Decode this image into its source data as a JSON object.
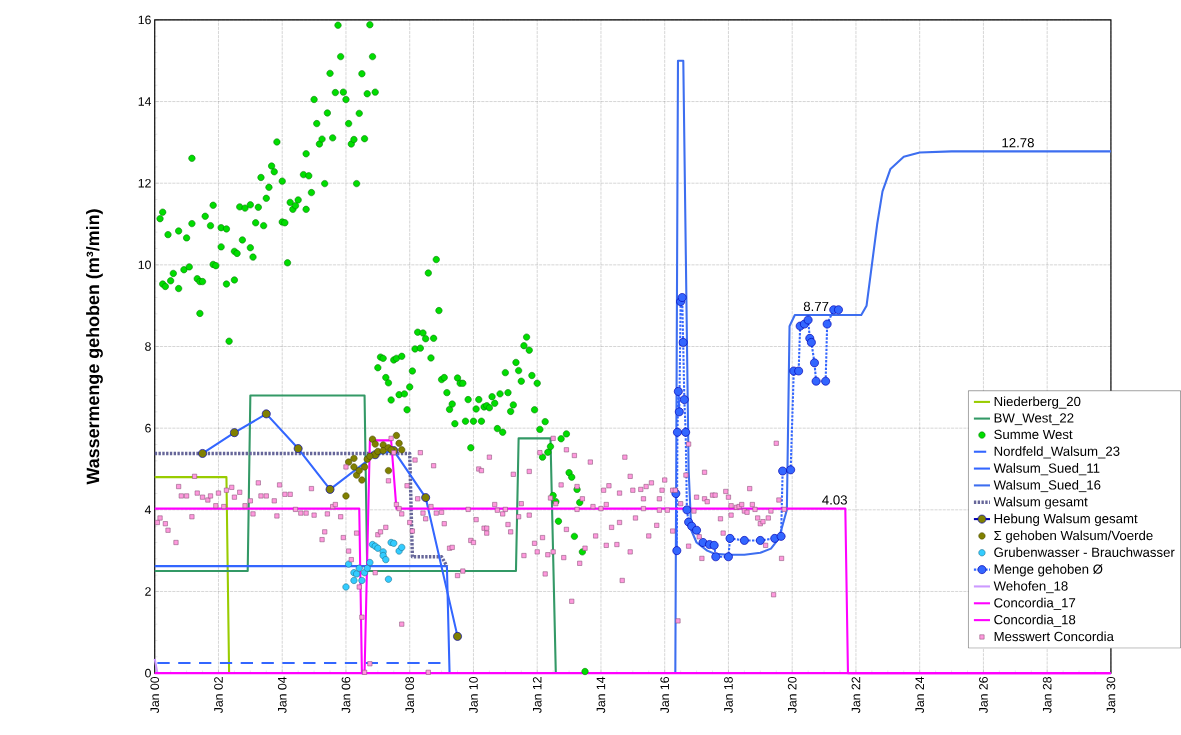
{
  "chart_data": {
    "type": "line",
    "ylabel": "Wassermenge gehoben (m³/min)",
    "xlim": [
      "2000-01",
      "2030-01"
    ],
    "ylim": [
      0,
      16
    ],
    "xticks": [
      {
        "value": "2000-01",
        "label": "Jan 00"
      },
      {
        "value": "2002-01",
        "label": "Jan 02"
      },
      {
        "value": "2004-01",
        "label": "Jan 04"
      },
      {
        "value": "2006-01",
        "label": "Jan 06"
      },
      {
        "value": "2008-01",
        "label": "Jan 08"
      },
      {
        "value": "2010-01",
        "label": "Jan 10"
      },
      {
        "value": "2012-01",
        "label": "Jan 12"
      },
      {
        "value": "2014-01",
        "label": "Jan 14"
      },
      {
        "value": "2016-01",
        "label": "Jan 16"
      },
      {
        "value": "2018-01",
        "label": "Jan 18"
      },
      {
        "value": "2020-01",
        "label": "Jan 20"
      },
      {
        "value": "2022-01",
        "label": "Jan 22"
      },
      {
        "value": "2024-01",
        "label": "Jan 24"
      },
      {
        "value": "2026-01",
        "label": "Jan 26"
      },
      {
        "value": "2028-01",
        "label": "Jan 28"
      },
      {
        "value": "2030-01",
        "label": "Jan 30"
      }
    ],
    "yticks": [
      0,
      2,
      4,
      6,
      8,
      10,
      12,
      14,
      16
    ],
    "grid": true,
    "legend": "bottom right",
    "annotations": [
      {
        "text": "8.77",
        "x": "2020-10",
        "y": 8.77
      },
      {
        "text": "12.78",
        "x": "2027-02",
        "y": 12.78
      },
      {
        "text": "4.03",
        "x": "2021-05",
        "y": 4.03
      }
    ],
    "series": [
      {
        "name": "Niederberg_20",
        "type": "line",
        "color": "#99cc00",
        "marker": "none",
        "line_style": "solid",
        "x": [
          "2000-01",
          "2002-04",
          "2002-05"
        ],
        "values": [
          4.8,
          4.8,
          0
        ]
      },
      {
        "name": "BW_West_22",
        "type": "line",
        "color": "#339966",
        "marker": "none",
        "line_style": "solid",
        "x": [
          "2000-01",
          "2002-12",
          "2003-01",
          "2006-08",
          "2006-09",
          "2011-05",
          "2011-06",
          "2012-06",
          "2012-08"
        ],
        "values": [
          2.5,
          2.5,
          6.8,
          6.8,
          2.5,
          2.5,
          5.75,
          5.75,
          0
        ]
      },
      {
        "name": "Summe West",
        "type": "scatter",
        "color": "#00dd00",
        "marker": "circle",
        "x": [
          "2000-03",
          "2000-04",
          "2000-06",
          "2000-04",
          "2000-05",
          "2000-07",
          "2000-08",
          "2000-10",
          "2000-10",
          "2000-12",
          "2001-01",
          "2001-02",
          "2001-03",
          "2001-03",
          "2001-05",
          "2001-06",
          "2001-06",
          "2001-07",
          "2001-08",
          "2001-10",
          "2001-11",
          "2001-11",
          "2001-12",
          "2002-02",
          "2002-02",
          "2002-04",
          "2002-04",
          "2002-05",
          "2002-07",
          "2002-07",
          "2002-08",
          "2002-09",
          "2002-10",
          "2002-11",
          "2003-01",
          "2003-01",
          "2003-02",
          "2003-03",
          "2003-04",
          "2003-05",
          "2003-06",
          "2003-07",
          "2003-08",
          "2003-09",
          "2003-10",
          "2003-11",
          "2004-01",
          "2004-01",
          "2004-02",
          "2004-03",
          "2004-04",
          "2004-05",
          "2004-06",
          "2004-07",
          "2004-09",
          "2004-10",
          "2004-10",
          "2004-11",
          "2004-12",
          "2005-01",
          "2005-02",
          "2005-03",
          "2005-04",
          "2005-05",
          "2005-06",
          "2005-07",
          "2005-08",
          "2005-09",
          "2005-10",
          "2005-11",
          "2005-12",
          "2006-01",
          "2006-02",
          "2006-03",
          "2006-04",
          "2006-05",
          "2006-06",
          "2006-07",
          "2006-08",
          "2006-09",
          "2006-10",
          "2006-11",
          "2006-12",
          "2007-01",
          "2007-02",
          "2007-03",
          "2007-04",
          "2007-05",
          "2007-06",
          "2007-07",
          "2007-08",
          "2007-09",
          "2007-10",
          "2007-11",
          "2007-12",
          "2008-01",
          "2008-02",
          "2008-03",
          "2008-04",
          "2008-05",
          "2008-06",
          "2008-07",
          "2008-08",
          "2008-09",
          "2008-10",
          "2008-11",
          "2008-12",
          "2009-01",
          "2009-02",
          "2009-03",
          "2009-04",
          "2009-05",
          "2009-06",
          "2009-07",
          "2009-08",
          "2009-09",
          "2009-10",
          "2009-11",
          "2009-12",
          "2010-01",
          "2010-02",
          "2010-03",
          "2010-04",
          "2010-05",
          "2010-06",
          "2010-07",
          "2010-08",
          "2010-09",
          "2010-10",
          "2010-11",
          "2010-12",
          "2011-01",
          "2011-02",
          "2011-03",
          "2011-04",
          "2011-05",
          "2011-06",
          "2011-07",
          "2011-08",
          "2011-09",
          "2011-10",
          "2011-11",
          "2011-12",
          "2012-01",
          "2012-02",
          "2012-03",
          "2012-04",
          "2012-05",
          "2012-06",
          "2012-07",
          "2012-08",
          "2012-09",
          "2012-10",
          "2012-12",
          "2013-01",
          "2013-02",
          "2013-03",
          "2013-04",
          "2013-05",
          "2013-06",
          "2013-07"
        ],
        "values": [
          11.13,
          11.29,
          10.74,
          9.53,
          9.47,
          9.61,
          9.79,
          9.42,
          10.83,
          9.88,
          10.66,
          9.95,
          11.01,
          12.61,
          9.66,
          8.81,
          9.59,
          9.59,
          11.19,
          10.96,
          11.46,
          10.01,
          9.98,
          10.44,
          10.91,
          10.88,
          9.53,
          8.13,
          9.63,
          10.33,
          10.28,
          11.42,
          10.61,
          11.39,
          11.47,
          10.42,
          10.19,
          11.03,
          11.41,
          12.14,
          10.96,
          11.63,
          11.9,
          12.42,
          12.28,
          13.01,
          11.05,
          12.05,
          11.03,
          10.05,
          11.53,
          11.36,
          11.45,
          11.59,
          12.21,
          11.36,
          12.72,
          12.18,
          11.77,
          14.05,
          13.46,
          12.96,
          13.08,
          11.99,
          13.72,
          14.69,
          13.11,
          14.22,
          15.87,
          15.1,
          14.23,
          14.05,
          13.46,
          12.96,
          13.07,
          11.99,
          13.71,
          14.68,
          13.09,
          14.19,
          15.88,
          15.1,
          14.23,
          7.48,
          7.74,
          7.71,
          7.24,
          7.11,
          6.69,
          7.67,
          7.71,
          6.82,
          7.76,
          6.84,
          6.45,
          7.01,
          7.4,
          7.94,
          8.35,
          7.96,
          8.33,
          8.19,
          9.8,
          7.72,
          8.2,
          10.13,
          8.88,
          7.19,
          7.24,
          6.87,
          6.46,
          6.59,
          6.11,
          7.23,
          7.1,
          7.1,
          6.17,
          6.7,
          5.52,
          6.17,
          6.47,
          6.7,
          6.17,
          6.52,
          6.55,
          6.5,
          6.77,
          6.61,
          5.99,
          6.84,
          5.9,
          7.36,
          6.87,
          6.41,
          6.57,
          7.61,
          7.41,
          7.15,
          8.02,
          8.23,
          7.91,
          7.29,
          6.45,
          7.1,
          5.97,
          5.29,
          6.16,
          5.41,
          5.55,
          4.35,
          4.2,
          3.72,
          5.74,
          5.86,
          4.91,
          4.8,
          3.35,
          4.5,
          4.18,
          2.97,
          0.04
        ]
      },
      {
        "name": "Nordfeld_Walsum_23",
        "type": "line",
        "color": "#3366ff",
        "marker": "none",
        "line_style": "dashed",
        "x": [
          "2000-02",
          "2009-01"
        ],
        "values": [
          0.25,
          0.25
        ]
      },
      {
        "name": "Walsum_Sued_11",
        "type": "line",
        "color": "#3366ff",
        "marker": "none",
        "line_style": "solid",
        "x": [
          "2000-01",
          "2009-03",
          "2009-04"
        ],
        "values": [
          2.62,
          2.62,
          0
        ]
      },
      {
        "name": "Walsum_Sued_16",
        "type": "line",
        "color": "#3d6ef0",
        "marker": "none",
        "line_style": "solid",
        "x": [
          "2016-05",
          "2016-06",
          "2016-08",
          "2016-10",
          "2016-11",
          "2017-01",
          "2017-05",
          "2017-08",
          "2018-01",
          "2018-07",
          "2019-01",
          "2019-05",
          "2019-08",
          "2019-11",
          "2019-12",
          "2020-02",
          "2022-03",
          "2022-05",
          "2022-07",
          "2022-09",
          "2022-11",
          "2023-02",
          "2023-07",
          "2024-01",
          "2025-01",
          "2030-01"
        ],
        "values": [
          0,
          15,
          15,
          5,
          3.5,
          3.2,
          3.0,
          2.92,
          2.9,
          2.9,
          2.95,
          3.05,
          3.3,
          4.0,
          8.5,
          8.77,
          8.77,
          9.0,
          10.0,
          11.0,
          11.8,
          12.35,
          12.65,
          12.75,
          12.78,
          12.78
        ]
      },
      {
        "name": "Walsum gesamt",
        "type": "line",
        "color": "#666699",
        "marker": "none",
        "line_style": "dotted",
        "x": [
          "2000-01",
          "2008-01",
          "2008-02",
          "2009-01",
          "2009-03"
        ],
        "values": [
          5.38,
          5.38,
          2.85,
          2.85,
          2.62
        ]
      },
      {
        "name": "Hebung Walsum gesamt",
        "type": "line",
        "color": "#3366ff",
        "marker": "circle",
        "line_style": "solid",
        "colors": [
          "#808000",
          "#808000",
          "#808000",
          "#808000",
          "#808000",
          "#808000",
          "#808000",
          "#808000",
          "#808000"
        ],
        "x": [
          "2001-07",
          "2002-07",
          "2003-07",
          "2004-07",
          "2005-07",
          "2006-12",
          "2007-07",
          "2008-07",
          "2009-07"
        ],
        "values": [
          5.38,
          5.89,
          6.35,
          5.5,
          4.5,
          5.35,
          5.45,
          4.3,
          0.9
        ]
      },
      {
        "name": "Σ gehoben Walsum/Voerde",
        "type": "scatter",
        "color": "#808000",
        "marker": "circle",
        "x": [
          "2006-01",
          "2006-02",
          "2006-04",
          "2006-04",
          "2006-05",
          "2006-06",
          "2006-07",
          "2006-08",
          "2006-09",
          "2006-10",
          "2006-11",
          "2006-12",
          "2007-01",
          "2007-03",
          "2007-03",
          "2007-05",
          "2007-05",
          "2007-06",
          "2007-08",
          "2007-09",
          "2007-10"
        ],
        "values": [
          4.34,
          5.17,
          5.05,
          5.26,
          4.85,
          4.96,
          4.73,
          5.05,
          5.24,
          5.31,
          5.73,
          5.61,
          5.43,
          5.59,
          5.45,
          5.52,
          4.96,
          5.47,
          5.82,
          5.63,
          5.47
        ]
      },
      {
        "name": "Grubenwasser - Brauchwasser",
        "type": "scatter",
        "color": "#33ccff",
        "marker": "circle",
        "x": [
          "2006-01",
          "2006-02",
          "2006-04",
          "2006-04",
          "2006-05",
          "2006-06",
          "2006-07",
          "2006-08",
          "2006-09",
          "2006-10",
          "2006-11",
          "2006-12",
          "2007-01",
          "2007-03",
          "2007-03",
          "2007-04",
          "2007-05",
          "2007-06",
          "2007-07",
          "2007-09",
          "2007-10"
        ],
        "values": [
          2.11,
          2.67,
          2.27,
          2.46,
          2.43,
          2.57,
          2.27,
          2.46,
          2.57,
          2.71,
          3.15,
          3.11,
          3.06,
          2.97,
          2.88,
          2.78,
          2.3,
          3.2,
          3.18,
          2.99,
          3.08
        ]
      },
      {
        "name": "Menge gehoben Ø",
        "type": "line",
        "color": "#3366ff",
        "marker": "circle",
        "line_style": "dotted",
        "x": [
          "2016-05-07",
          "2016-05-18",
          "2016-05-25",
          "2016-06-05",
          "2016-06-16",
          "2016-07-01",
          "2016-07-19",
          "2016-07-30",
          "2016-08-13",
          "2016-08-28",
          "2016-09-12",
          "2016-10-01",
          "2016-11-06",
          "2017-01-01",
          "2017-03-14",
          "2017-05-27",
          "2017-07-20",
          "2017-08-08",
          "2018-01-01",
          "2018-01-19",
          "2018-07-01",
          "2019-01-01",
          "2019-06-14",
          "2019-08-26",
          "2019-09-13",
          "2019-12-14",
          "2020-01-19",
          "2020-03-14",
          "2020-04-01",
          "2020-05-19",
          "2020-07-01",
          "2020-07-20",
          "2020-08-08",
          "2020-09-13",
          "2020-10-01",
          "2021-01-19",
          "2021-02-06",
          "2021-04-20",
          "2021-06-14"
        ],
        "values": [
          4.4,
          3.0,
          5.9,
          6.9,
          6.4,
          9.1,
          9.2,
          8.1,
          6.7,
          5.9,
          4.0,
          3.7,
          3.6,
          3.5,
          3.2,
          3.15,
          3.13,
          2.85,
          2.85,
          3.3,
          3.25,
          3.25,
          3.3,
          3.35,
          4.95,
          4.98,
          7.4,
          7.4,
          8.5,
          8.55,
          8.65,
          8.2,
          8.1,
          7.6,
          7.15,
          7.15,
          8.55,
          8.9,
          8.9
        ]
      },
      {
        "name": "Wehofen_18",
        "type": "line",
        "color": "#cc99ff",
        "marker": "none",
        "line_style": "solid",
        "x": [
          "2000-01",
          "2000-02"
        ],
        "values": [
          0.35,
          0
        ]
      },
      {
        "name": "Concordia_17",
        "type": "line",
        "color": "#ff00ff",
        "marker": "none",
        "line_style": "solid",
        "x": [
          "2000-01",
          "2006-06",
          "2006-07",
          "2030-01"
        ],
        "values": [
          4.03,
          4.03,
          0,
          0
        ]
      },
      {
        "name": "Concordia_18",
        "type": "line",
        "color": "#ff00ff",
        "marker": "none",
        "line_style": "solid",
        "x": [
          "2000-01",
          "2006-08",
          "2006-10",
          "2007-06",
          "2007-08",
          "2021-09",
          "2021-10",
          "2030-01"
        ],
        "values": [
          0,
          0,
          5.7,
          5.7,
          4.03,
          4.03,
          0,
          0
        ]
      },
      {
        "name": "Messwert Concordia",
        "type": "scatter",
        "color": "#ff99dd",
        "marker": "square",
        "x": [
          "2000-02",
          "2000-03",
          "2000-05",
          "2000-06",
          "2000-09",
          "2000-10",
          "2000-11",
          "2001-01",
          "2001-03",
          "2001-04",
          "2001-05",
          "2001-07",
          "2001-09",
          "2001-10",
          "2001-12",
          "2002-01",
          "2002-03",
          "2002-04",
          "2002-06",
          "2002-07",
          "2002-09",
          "2002-11",
          "2003-01",
          "2003-02",
          "2003-04",
          "2003-05",
          "2003-07",
          "2003-10",
          "2003-11",
          "2003-12",
          "2004-02",
          "2004-04",
          "2004-06",
          "2004-08",
          "2004-10",
          "2004-12",
          "2005-01",
          "2005-04",
          "2005-05",
          "2005-06",
          "2005-08",
          "2005-09",
          "2005-11",
          "2005-12",
          "2006-01",
          "2006-02",
          "2006-03",
          "2006-05",
          "2006-06",
          "2006-07",
          "2006-08",
          "2006-10",
          "2006-12",
          "2007-01",
          "2007-02",
          "2007-04",
          "2007-05",
          "2007-06",
          "2007-07",
          "2007-08",
          "2007-09",
          "2007-10",
          "2007-10",
          "2007-12",
          "2008-01",
          "2008-02",
          "2008-03",
          "2008-04",
          "2008-05",
          "2008-06",
          "2008-07",
          "2008-08",
          "2008-09",
          "2008-10",
          "2008-11",
          "2009-01",
          "2009-02",
          "2009-04",
          "2009-05",
          "2009-07",
          "2009-09",
          "2009-11",
          "2009-12",
          "2010-01",
          "2010-02",
          "2010-03",
          "2010-04",
          "2010-05",
          "2010-06",
          "2010-06",
          "2010-07",
          "2010-09",
          "2010-10",
          "2010-12",
          "2011-01",
          "2011-02",
          "2011-03",
          "2011-04",
          "2011-06",
          "2011-07",
          "2011-08",
          "2011-10",
          "2011-10",
          "2011-12",
          "2012-01",
          "2012-02",
          "2012-03",
          "2012-04",
          "2012-05",
          "2012-06",
          "2012-07",
          "2012-07",
          "2012-08",
          "2012-10",
          "2012-11",
          "2012-12",
          "2012-12",
          "2013-02",
          "2013-03",
          "2013-04",
          "2013-04",
          "2013-05",
          "2013-06",
          "2013-07",
          "2013-09",
          "2013-10",
          "2013-11",
          "2014-01",
          "2014-02",
          "2014-03",
          "2014-03",
          "2014-04",
          "2014-05",
          "2014-07",
          "2014-08",
          "2014-08",
          "2014-09",
          "2014-10",
          "2014-12",
          "2014-12",
          "2015-01",
          "2015-02",
          "2015-04",
          "2015-05",
          "2015-05",
          "2015-06",
          "2015-07",
          "2015-08",
          "2015-10",
          "2015-11",
          "2015-11",
          "2015-12",
          "2016-01",
          "2016-02",
          "2016-04",
          "2016-04",
          "2016-05",
          "2016-06",
          "2016-07",
          "2016-09",
          "2016-10",
          "2016-10",
          "2016-12",
          "2017-01",
          "2017-02",
          "2017-03",
          "2017-04",
          "2017-04",
          "2017-05",
          "2017-07",
          "2017-08",
          "2017-10",
          "2017-11",
          "2017-12",
          "2018-01",
          "2018-02",
          "2018-02",
          "2018-04",
          "2018-05",
          "2018-06",
          "2018-07",
          "2018-08",
          "2018-09",
          "2018-10",
          "2018-11",
          "2018-12",
          "2019-01",
          "2019-02",
          "2019-03",
          "2019-04",
          "2019-05",
          "2019-06",
          "2019-07",
          "2019-08",
          "2019-09",
          "2019-10"
        ],
        "values": [
          3.69,
          3.8,
          3.66,
          3.5,
          3.2,
          4.57,
          4.34,
          4.34,
          3.83,
          4.82,
          4.41,
          4.31,
          4.24,
          4.34,
          4.1,
          4.41,
          4.08,
          4.48,
          4.55,
          4.31,
          4.43,
          4.1,
          4.22,
          3.9,
          4.66,
          4.34,
          4.34,
          4.22,
          3.85,
          4.61,
          4.38,
          4.38,
          4.01,
          3.92,
          3.92,
          4.52,
          3.87,
          3.27,
          3.46,
          3.9,
          4.08,
          4.13,
          3.83,
          3.32,
          5.05,
          2.99,
          2.78,
          3.43,
          2.11,
          1.37,
          0.02,
          0.23,
          2.46,
          3.39,
          3.46,
          3.57,
          4.71,
          5.75,
          5.4,
          4.13,
          4.03,
          3.9,
          1.2,
          4.59,
          3.69,
          3.48,
          5.22,
          4.27,
          5.4,
          3.92,
          3.78,
          0.02,
          4.08,
          5.08,
          3.92,
          3.94,
          3.66,
          3.06,
          3.08,
          2.39,
          2.5,
          4.01,
          3.25,
          3.2,
          3.76,
          5.0,
          4.96,
          3.55,
          3.43,
          3.55,
          5.29,
          4.13,
          3.99,
          3.9,
          4.01,
          3.64,
          3.46,
          4.87,
          3.83,
          4.15,
          2.88,
          3.87,
          4.94,
          3.18,
          2.97,
          5.4,
          3.32,
          2.43,
          2.9,
          4.29,
          2.97,
          5.75,
          4.15,
          4.61,
          2.83,
          3.52,
          5.47,
          1.76,
          5.33,
          4.01,
          4.57,
          2.69,
          4.27,
          3.06,
          5.17,
          4.08,
          3.36,
          4.03,
          4.48,
          3.13,
          4.13,
          4.59,
          3.57,
          3.15,
          4.41,
          3.69,
          2.27,
          5.29,
          2.97,
          4.82,
          4.48,
          3.8,
          4.5,
          4.03,
          4.27,
          4.57,
          3.36,
          4.66,
          3.62,
          3.99,
          4.27,
          4.48,
          4.73,
          3.99,
          3.48,
          4.48,
          4.48,
          1.28,
          4.15,
          4.85,
          3.11,
          5.61,
          3.97,
          4.31,
          3.34,
          2.81,
          4.27,
          4.92,
          4.2,
          4.36,
          4.36,
          3.78,
          3.43,
          4.45,
          4.31,
          4.1,
          3.87,
          4.06,
          4.08,
          4.13,
          3.97,
          3.94,
          4.52,
          4.13,
          4.01,
          3.8,
          3.66,
          3.71,
          3.13,
          3.8,
          3.97,
          1.92,
          5.63,
          4.24,
          2.81,
          4.01
        ]
      }
    ]
  }
}
